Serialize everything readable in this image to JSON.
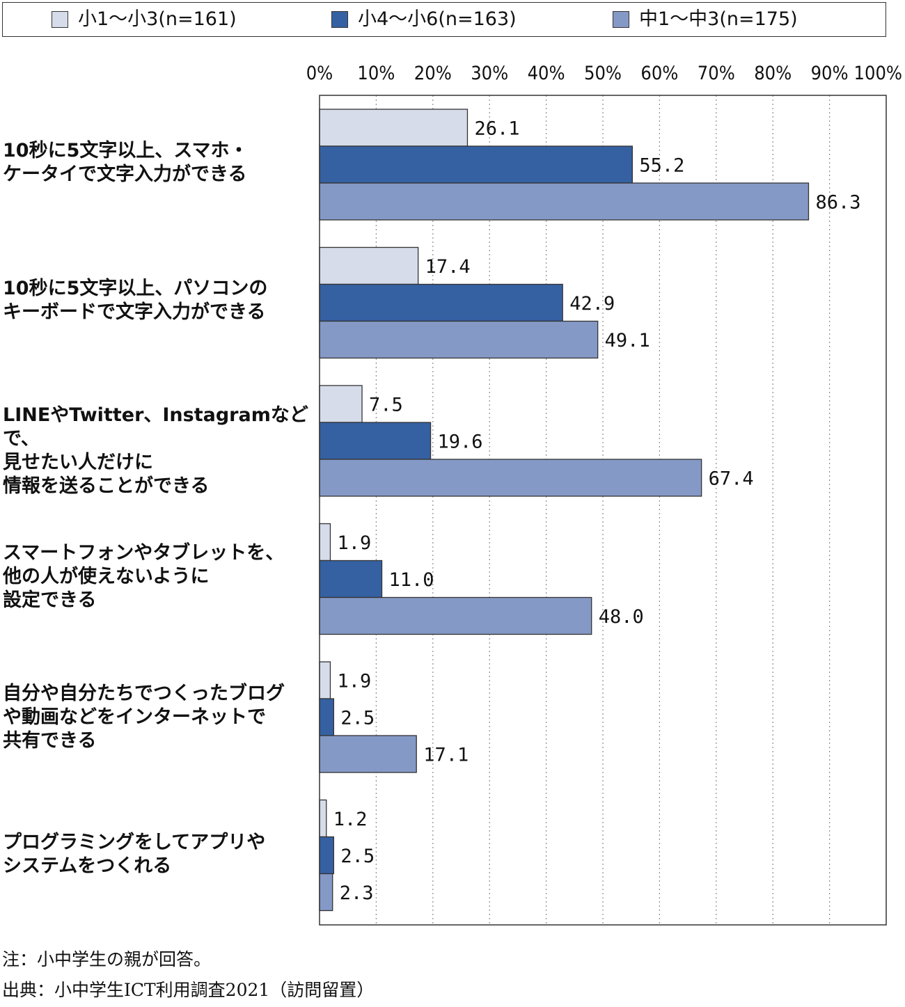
{
  "legend": [
    {
      "label": "小1～小3(n=161)",
      "color": "#d6dcea"
    },
    {
      "label": "小4～小6(n=163)",
      "color": "#3561a3"
    },
    {
      "label": "中1～中3(n=175)",
      "color": "#8599c6"
    }
  ],
  "chart_data": {
    "type": "bar",
    "orientation": "horizontal",
    "x_ticks": [
      "0%",
      "10%",
      "20%",
      "30%",
      "40%",
      "50%",
      "60%",
      "70%",
      "80%",
      "90%",
      "100%"
    ],
    "xlim": [
      0,
      100
    ],
    "grid": "vertical dotted",
    "legend_position": "top",
    "categories": [
      "10秒に5文字以上、スマホ・\nケータイで文字入力ができる",
      "10秒に5文字以上、パソコンの\nキーボードで文字入力ができる",
      "LINEやTwitter、Instagramなどで、\n見せたい人だけに\n情報を送ることができる",
      "スマートフォンやタブレットを、\n他の人が使えないように\n設定できる",
      "自分や自分たちでつくったブログ\nや動画などをインターネットで\n共有できる",
      "プログラミングをしてアプリや\nシステムをつくれる"
    ],
    "series": [
      {
        "name": "小1～小3(n=161)",
        "values": [
          26.1,
          17.4,
          7.5,
          1.9,
          1.9,
          1.2
        ],
        "labels": [
          "26.1",
          "17.4",
          "7.5",
          "1.9",
          "1.9",
          "1.2"
        ]
      },
      {
        "name": "小4～小6(n=163)",
        "values": [
          55.2,
          42.9,
          19.6,
          11.0,
          2.5,
          2.5
        ],
        "labels": [
          "55.2",
          "42.9",
          "19.6",
          "11.0",
          "2.5",
          "2.5"
        ]
      },
      {
        "name": "中1～中3(n=175)",
        "values": [
          86.3,
          49.1,
          67.4,
          48.0,
          17.1,
          2.3
        ],
        "labels": [
          "86.3",
          "49.1",
          "67.4",
          "48.0",
          "17.1",
          "2.3"
        ]
      }
    ]
  },
  "notes": {
    "note": "注：小中学生の親が回答。",
    "source": "出典：小中学生ICT利用調査2021（訪問留置）"
  }
}
